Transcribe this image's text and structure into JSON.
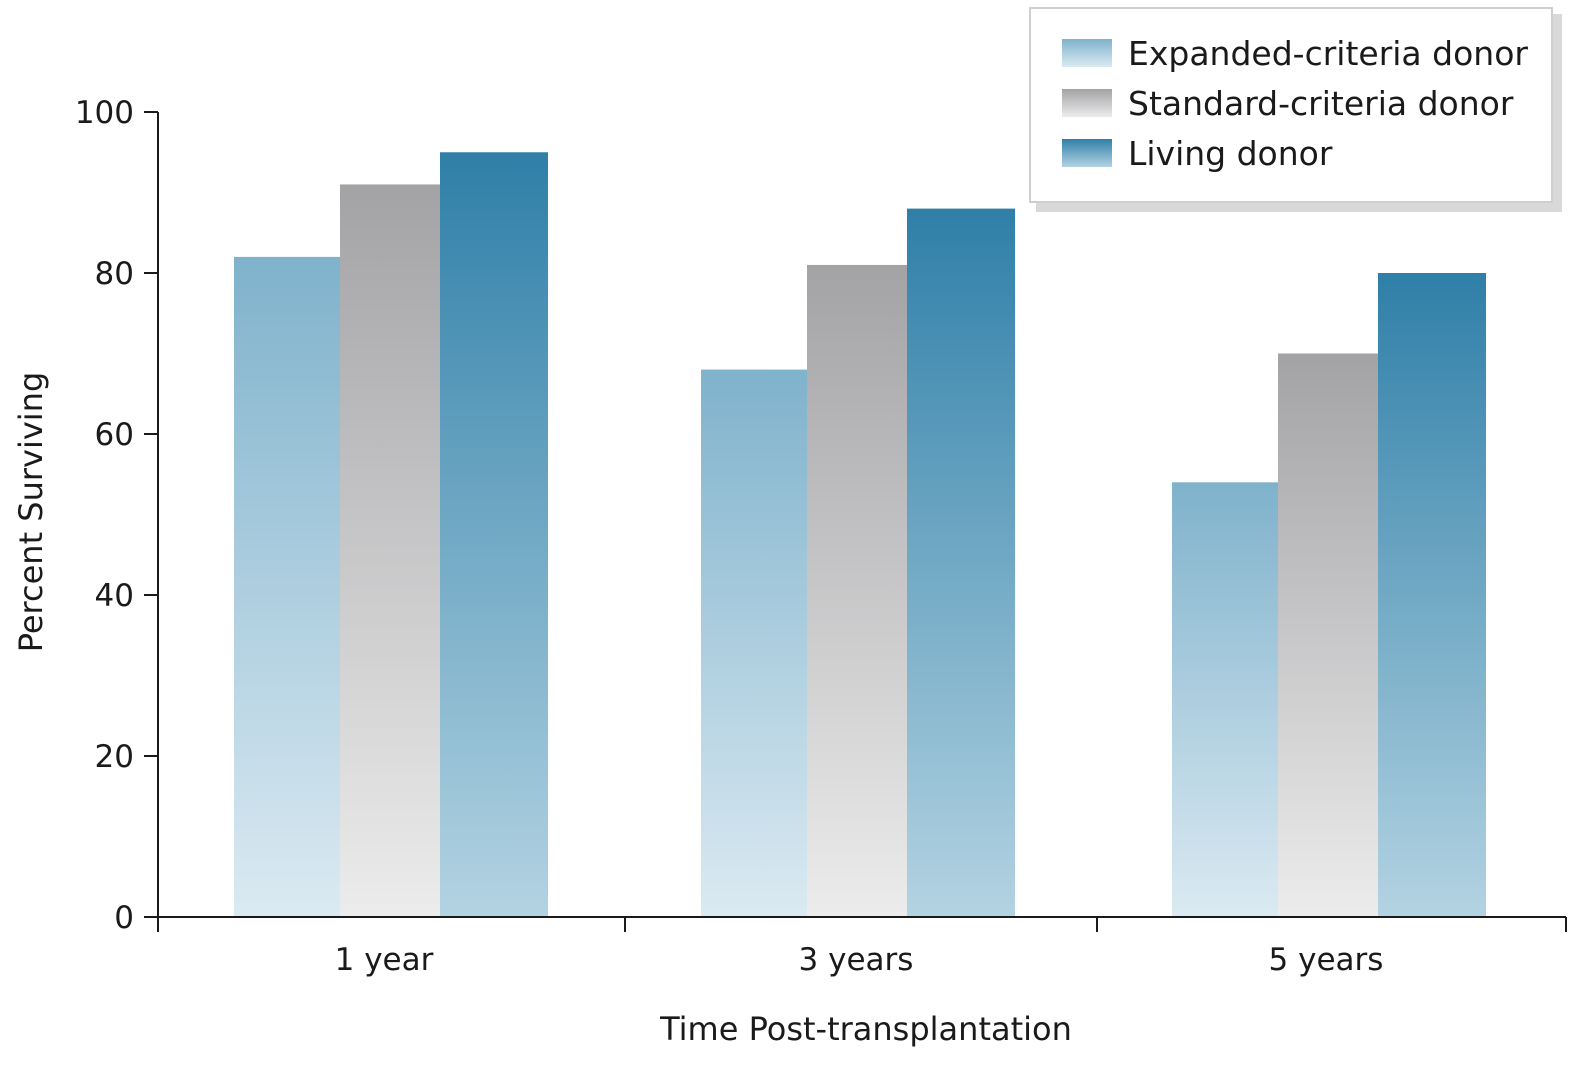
{
  "chart_data": {
    "type": "bar",
    "title": "",
    "xlabel": "Time Post-transplantation",
    "ylabel": "Percent Surviving",
    "categories": [
      "1 year",
      "3 years",
      "5 years"
    ],
    "ylim": [
      0,
      100
    ],
    "yticks": [
      0,
      20,
      40,
      60,
      80,
      100
    ],
    "grid": false,
    "legend_position": "top-right",
    "series": [
      {
        "name": "Expanded-criteria donor",
        "values": [
          82,
          68,
          54
        ],
        "color_top": "#7fb2cc",
        "color_bottom": "#dbeaf2"
      },
      {
        "name": "Standard-criteria donor",
        "values": [
          91,
          81,
          70
        ],
        "color_top": "#a3a3a6",
        "color_bottom": "#ececec"
      },
      {
        "name": "Living donor",
        "values": [
          95,
          88,
          80
        ],
        "color_top": "#2f7fa8",
        "color_bottom": "#b3d3e2"
      }
    ]
  }
}
